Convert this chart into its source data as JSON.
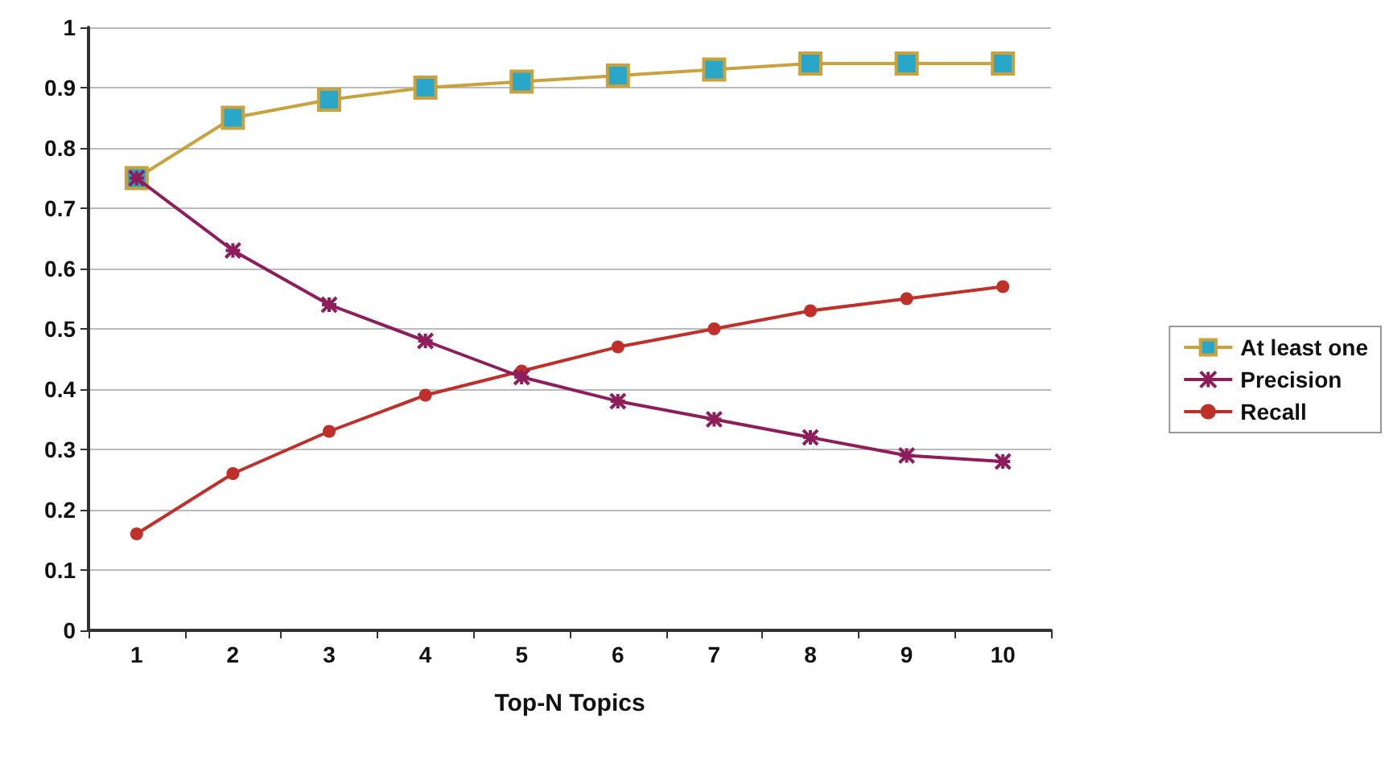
{
  "chart_data": {
    "type": "line",
    "xlabel": "Top-N Topics",
    "categories": [
      "1",
      "2",
      "3",
      "4",
      "5",
      "6",
      "7",
      "8",
      "9",
      "10"
    ],
    "series": [
      {
        "name": "At least one",
        "color": "#c9a23e",
        "marker": "square",
        "values": [
          0.75,
          0.85,
          0.88,
          0.9,
          0.91,
          0.92,
          0.93,
          0.94,
          0.94,
          0.94
        ]
      },
      {
        "name": "Precision",
        "color": "#8e1d5c",
        "marker": "cross",
        "values": [
          0.75,
          0.63,
          0.54,
          0.48,
          0.42,
          0.38,
          0.35,
          0.32,
          0.29,
          0.28
        ]
      },
      {
        "name": "Recall",
        "color": "#c0302a",
        "marker": "circle",
        "values": [
          0.16,
          0.26,
          0.33,
          0.39,
          0.43,
          0.47,
          0.5,
          0.53,
          0.55,
          0.57
        ]
      }
    ],
    "ylim": [
      0,
      1
    ],
    "yticks": [
      0,
      0.1,
      0.2,
      0.3,
      0.4,
      0.5,
      0.6,
      0.7,
      0.8,
      0.9,
      1
    ],
    "grid": "y",
    "legend": "right",
    "line_style": "solid"
  }
}
